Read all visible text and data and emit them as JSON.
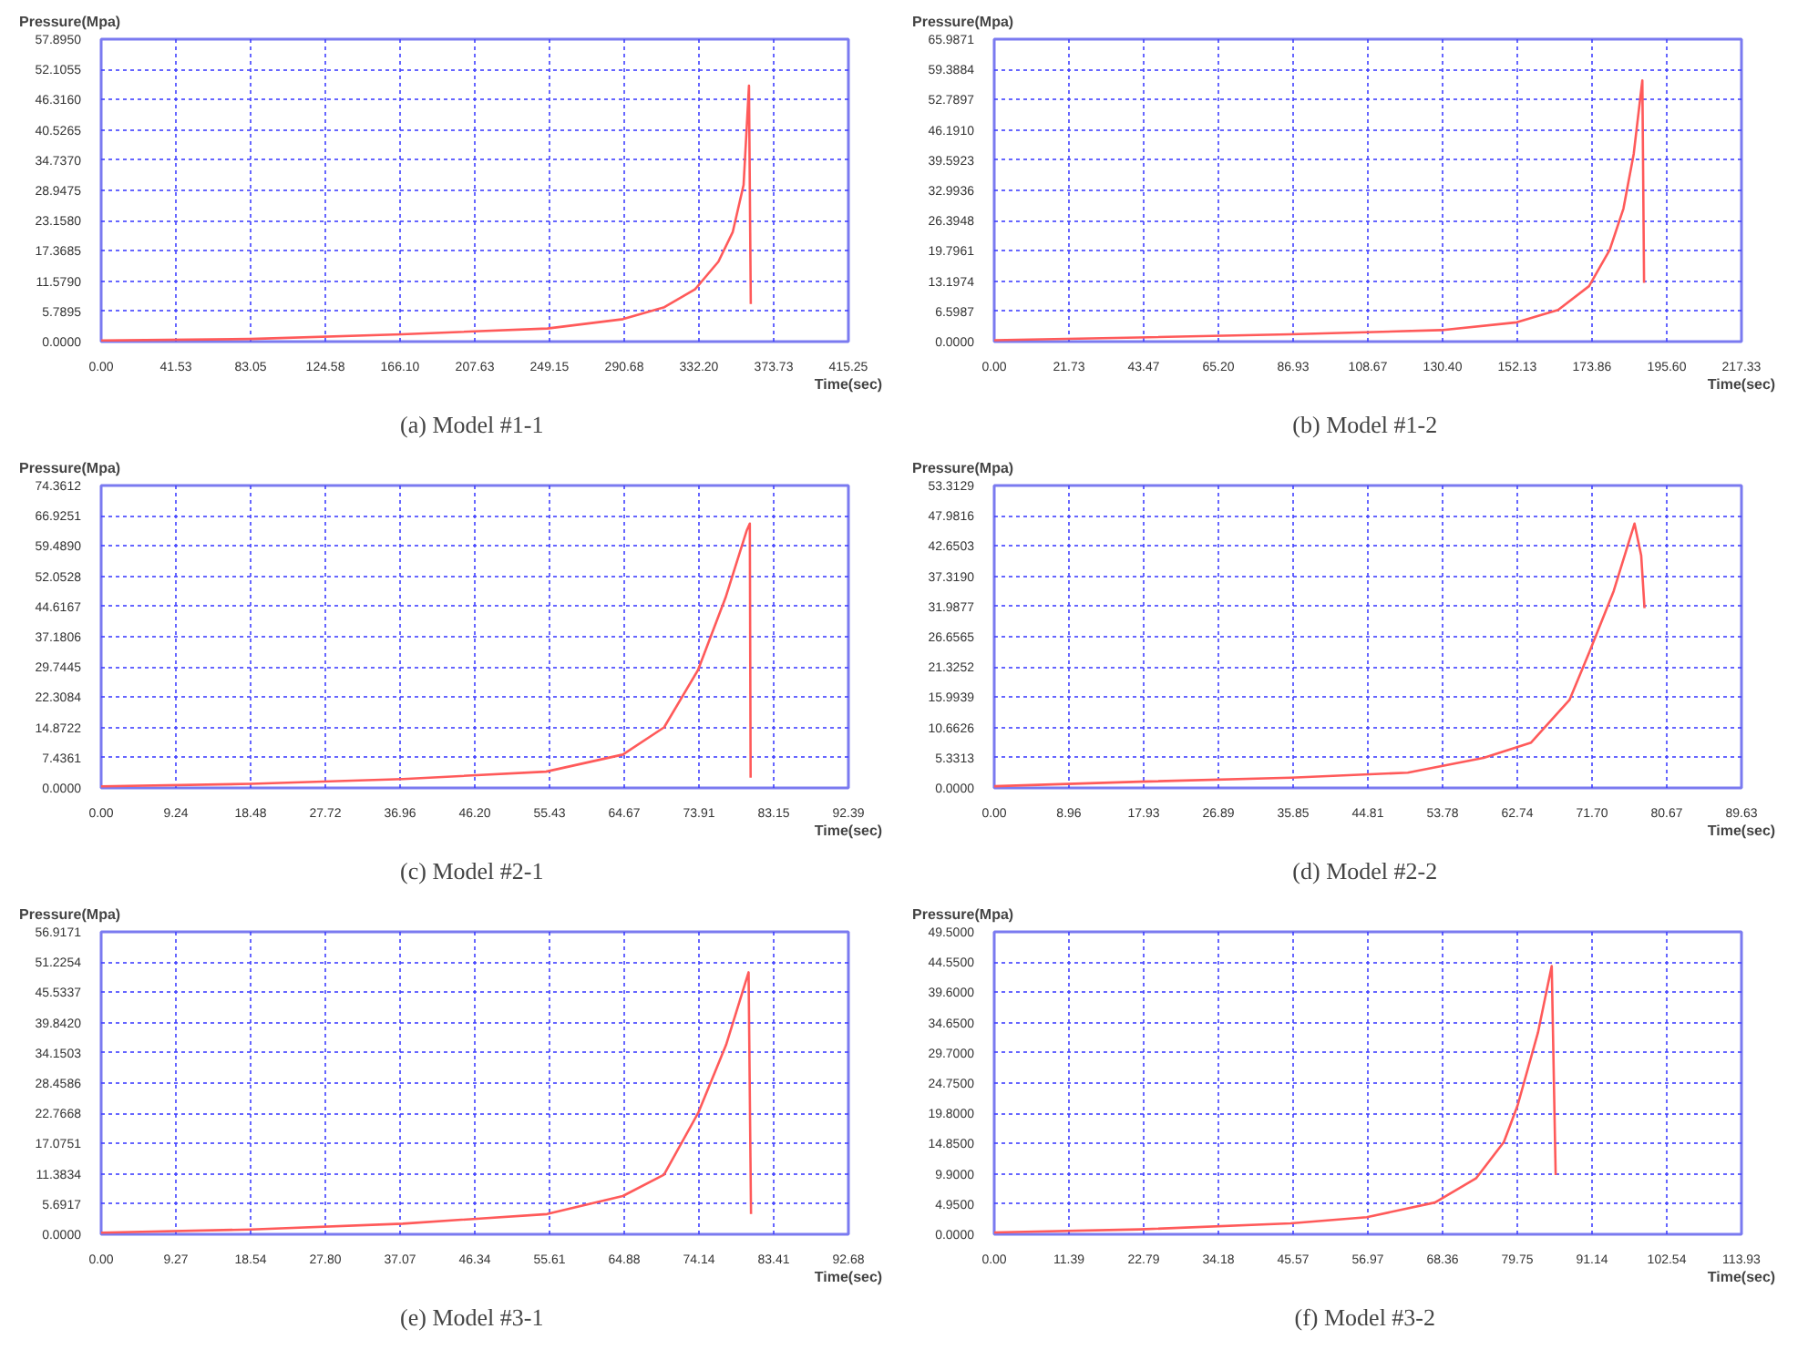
{
  "chart_data": [
    {
      "type": "line",
      "title": "(a)  Model #1-1",
      "xlabel": "Time(sec)",
      "ylabel": "Pressure(Mpa)",
      "grid": true,
      "line_style": "solid",
      "xlim": [
        0,
        415.25
      ],
      "ylim": [
        0,
        57.895
      ],
      "xticks": [
        {
          "value": 0,
          "label": "0.00"
        },
        {
          "value": 41.53,
          "label": "41.53"
        },
        {
          "value": 83.05,
          "label": "83.05"
        },
        {
          "value": 124.58,
          "label": "124.58"
        },
        {
          "value": 166.1,
          "label": "166.10"
        },
        {
          "value": 207.63,
          "label": "207.63"
        },
        {
          "value": 249.15,
          "label": "249.15"
        },
        {
          "value": 290.68,
          "label": "290.68"
        },
        {
          "value": 332.2,
          "label": "332.20"
        },
        {
          "value": 373.73,
          "label": "373.73"
        },
        {
          "value": 415.25,
          "label": "415.25"
        }
      ],
      "yticks": [
        {
          "value": 0,
          "label": "0.0000"
        },
        {
          "value": 5.7895,
          "label": "5.7895"
        },
        {
          "value": 11.579,
          "label": "11.5790"
        },
        {
          "value": 17.3685,
          "label": "17.3685"
        },
        {
          "value": 23.158,
          "label": "23.1580"
        },
        {
          "value": 28.9475,
          "label": "28.9475"
        },
        {
          "value": 34.737,
          "label": "34.7370"
        },
        {
          "value": 40.5265,
          "label": "40.5265"
        },
        {
          "value": 46.316,
          "label": "46.3160"
        },
        {
          "value": 52.1055,
          "label": "52.1055"
        },
        {
          "value": 57.895,
          "label": "57.8950"
        }
      ],
      "series": [
        {
          "color": "#ff5a5a",
          "x": [
            0,
            83,
            167,
            248,
            290,
            313,
            330,
            343,
            351,
            357,
            360,
            361
          ],
          "values": [
            0.2,
            0.5,
            1.4,
            2.5,
            4.3,
            6.6,
            10,
            15.3,
            21,
            30,
            49,
            7.2
          ]
        }
      ]
    },
    {
      "type": "line",
      "title": "(b)  Model #1-2",
      "xlabel": "Time(sec)",
      "ylabel": "Pressure(Mpa)",
      "grid": true,
      "line_style": "solid",
      "xlim": [
        0,
        217.33
      ],
      "ylim": [
        0,
        65.9871
      ],
      "xticks": [
        {
          "value": 0,
          "label": "0.00"
        },
        {
          "value": 21.73,
          "label": "21.73"
        },
        {
          "value": 43.47,
          "label": "43.47"
        },
        {
          "value": 65.2,
          "label": "65.20"
        },
        {
          "value": 86.93,
          "label": "86.93"
        },
        {
          "value": 108.67,
          "label": "108.67"
        },
        {
          "value": 130.4,
          "label": "130.40"
        },
        {
          "value": 152.13,
          "label": "152.13"
        },
        {
          "value": 173.86,
          "label": "173.86"
        },
        {
          "value": 195.6,
          "label": "195.60"
        },
        {
          "value": 217.33,
          "label": "217.33"
        }
      ],
      "yticks": [
        {
          "value": 0,
          "label": "0.0000"
        },
        {
          "value": 6.5987,
          "label": "6.5987"
        },
        {
          "value": 13.1974,
          "label": "13.1974"
        },
        {
          "value": 19.7961,
          "label": "19.7961"
        },
        {
          "value": 26.3948,
          "label": "26.3948"
        },
        {
          "value": 32.9936,
          "label": "32.9936"
        },
        {
          "value": 39.5923,
          "label": "39.5923"
        },
        {
          "value": 46.191,
          "label": "46.1910"
        },
        {
          "value": 52.7897,
          "label": "52.7897"
        },
        {
          "value": 59.3884,
          "label": "59.3884"
        },
        {
          "value": 65.9871,
          "label": "65.9871"
        }
      ],
      "series": [
        {
          "color": "#ff5a5a",
          "x": [
            0,
            42,
            86,
            130,
            152,
            164,
            173,
            179,
            183,
            186,
            188.5,
            189
          ],
          "values": [
            0.3,
            0.9,
            1.6,
            2.5,
            4.2,
            6.9,
            12.1,
            20,
            29,
            41,
            57,
            12.8
          ]
        }
      ]
    },
    {
      "type": "line",
      "title": "(c)  Model #2-1",
      "xlabel": "Time(sec)",
      "ylabel": "Pressure(Mpa)",
      "grid": true,
      "line_style": "solid",
      "xlim": [
        0,
        92.39
      ],
      "ylim": [
        0,
        74.3612
      ],
      "xticks": [
        {
          "value": 0,
          "label": "0.00"
        },
        {
          "value": 9.24,
          "label": "9.24"
        },
        {
          "value": 18.48,
          "label": "18.48"
        },
        {
          "value": 27.72,
          "label": "27.72"
        },
        {
          "value": 36.96,
          "label": "36.96"
        },
        {
          "value": 46.2,
          "label": "46.20"
        },
        {
          "value": 55.43,
          "label": "55.43"
        },
        {
          "value": 64.67,
          "label": "64.67"
        },
        {
          "value": 73.91,
          "label": "73.91"
        },
        {
          "value": 83.15,
          "label": "83.15"
        },
        {
          "value": 92.39,
          "label": "92.39"
        }
      ],
      "yticks": [
        {
          "value": 0,
          "label": "0.0000"
        },
        {
          "value": 7.4361,
          "label": "7.4361"
        },
        {
          "value": 14.8722,
          "label": "14.8722"
        },
        {
          "value": 22.3084,
          "label": "22.3084"
        },
        {
          "value": 29.7445,
          "label": "29.7445"
        },
        {
          "value": 37.1806,
          "label": "37.1806"
        },
        {
          "value": 44.6167,
          "label": "44.6167"
        },
        {
          "value": 52.0528,
          "label": "52.0528"
        },
        {
          "value": 59.489,
          "label": "59.4890"
        },
        {
          "value": 66.9251,
          "label": "66.9251"
        },
        {
          "value": 74.3612,
          "label": "74.3612"
        }
      ],
      "series": [
        {
          "color": "#ff5a5a",
          "x": [
            0,
            18.5,
            37.3,
            55,
            64.5,
            69.6,
            73.8,
            77.2,
            79.8,
            80.2,
            80.3
          ],
          "values": [
            0.4,
            1,
            2.2,
            4,
            8.2,
            14.9,
            29,
            46.8,
            63.2,
            65,
            2.5
          ]
        }
      ]
    },
    {
      "type": "line",
      "title": "(d)  Model #2-2",
      "xlabel": "Time(sec)",
      "ylabel": "Pressure(Mpa)",
      "grid": true,
      "line_style": "solid",
      "xlim": [
        0,
        89.63
      ],
      "ylim": [
        0,
        53.3129
      ],
      "xticks": [
        {
          "value": 0,
          "label": "0.00"
        },
        {
          "value": 8.96,
          "label": "8.96"
        },
        {
          "value": 17.93,
          "label": "17.93"
        },
        {
          "value": 26.89,
          "label": "26.89"
        },
        {
          "value": 35.85,
          "label": "35.85"
        },
        {
          "value": 44.81,
          "label": "44.81"
        },
        {
          "value": 53.78,
          "label": "53.78"
        },
        {
          "value": 62.74,
          "label": "62.74"
        },
        {
          "value": 71.7,
          "label": "71.70"
        },
        {
          "value": 80.67,
          "label": "80.67"
        },
        {
          "value": 89.63,
          "label": "89.63"
        }
      ],
      "yticks": [
        {
          "value": 0,
          "label": "0.0000"
        },
        {
          "value": 5.3313,
          "label": "5.3313"
        },
        {
          "value": 10.6626,
          "label": "10.6626"
        },
        {
          "value": 15.9939,
          "label": "15.9939"
        },
        {
          "value": 21.3252,
          "label": "21.3252"
        },
        {
          "value": 26.6565,
          "label": "26.6565"
        },
        {
          "value": 31.9877,
          "label": "31.9877"
        },
        {
          "value": 37.319,
          "label": "37.3190"
        },
        {
          "value": 42.6503,
          "label": "42.6503"
        },
        {
          "value": 47.9816,
          "label": "47.9816"
        },
        {
          "value": 53.3129,
          "label": "53.3129"
        }
      ],
      "series": [
        {
          "color": "#ff5a5a",
          "x": [
            0,
            17.5,
            35.6,
            49.6,
            58.7,
            64.4,
            69,
            71.4,
            74.3,
            76.8,
            77.6,
            78
          ],
          "values": [
            0.3,
            1.1,
            1.8,
            2.7,
            5.3,
            8,
            15.5,
            24,
            34.7,
            46.6,
            41,
            31.7
          ]
        }
      ]
    },
    {
      "type": "line",
      "title": "(e)  Model #3-1",
      "xlabel": "Time(sec)",
      "ylabel": "Pressure(Mpa)",
      "grid": true,
      "line_style": "solid",
      "xlim": [
        0,
        92.68
      ],
      "ylim": [
        0,
        56.9171
      ],
      "xticks": [
        {
          "value": 0,
          "label": "0.00"
        },
        {
          "value": 9.27,
          "label": "9.27"
        },
        {
          "value": 18.54,
          "label": "18.54"
        },
        {
          "value": 27.8,
          "label": "27.80"
        },
        {
          "value": 37.07,
          "label": "37.07"
        },
        {
          "value": 46.34,
          "label": "46.34"
        },
        {
          "value": 55.61,
          "label": "55.61"
        },
        {
          "value": 64.88,
          "label": "64.88"
        },
        {
          "value": 74.14,
          "label": "74.14"
        },
        {
          "value": 83.41,
          "label": "83.41"
        },
        {
          "value": 92.68,
          "label": "92.68"
        }
      ],
      "yticks": [
        {
          "value": 0,
          "label": "0.0000"
        },
        {
          "value": 5.6917,
          "label": "5.6917"
        },
        {
          "value": 11.3834,
          "label": "11.3834"
        },
        {
          "value": 17.0751,
          "label": "17.0751"
        },
        {
          "value": 22.7668,
          "label": "22.7668"
        },
        {
          "value": 28.4586,
          "label": "28.4586"
        },
        {
          "value": 34.1503,
          "label": "34.1503"
        },
        {
          "value": 39.842,
          "label": "39.8420"
        },
        {
          "value": 45.5337,
          "label": "45.5337"
        },
        {
          "value": 51.2254,
          "label": "51.2254"
        },
        {
          "value": 56.9171,
          "label": "56.9171"
        }
      ],
      "series": [
        {
          "color": "#ff5a5a",
          "x": [
            0,
            18.6,
            37.4,
            55.3,
            64.7,
            69.8,
            74.1,
            77.5,
            80.3,
            80.6
          ],
          "values": [
            0.3,
            0.9,
            2,
            3.8,
            7.2,
            11.2,
            23,
            35.6,
            49.3,
            3.8
          ]
        }
      ]
    },
    {
      "type": "line",
      "title": "(f)  Model #3-2",
      "xlabel": "Time(sec)",
      "ylabel": "Pressure(Mpa)",
      "grid": true,
      "line_style": "solid",
      "xlim": [
        0,
        113.93
      ],
      "ylim": [
        0,
        49.5
      ],
      "xticks": [
        {
          "value": 0,
          "label": "0.00"
        },
        {
          "value": 11.39,
          "label": "11.39"
        },
        {
          "value": 22.79,
          "label": "22.79"
        },
        {
          "value": 34.18,
          "label": "34.18"
        },
        {
          "value": 45.57,
          "label": "45.57"
        },
        {
          "value": 56.97,
          "label": "56.97"
        },
        {
          "value": 68.36,
          "label": "68.36"
        },
        {
          "value": 79.75,
          "label": "79.75"
        },
        {
          "value": 91.14,
          "label": "91.14"
        },
        {
          "value": 102.54,
          "label": "102.54"
        },
        {
          "value": 113.93,
          "label": "113.93"
        }
      ],
      "yticks": [
        {
          "value": 0,
          "label": "0.0000"
        },
        {
          "value": 4.95,
          "label": "4.9500"
        },
        {
          "value": 9.9,
          "label": "9.9000"
        },
        {
          "value": 14.85,
          "label": "14.8500"
        },
        {
          "value": 19.8,
          "label": "19.8000"
        },
        {
          "value": 24.75,
          "label": "24.7500"
        },
        {
          "value": 29.7,
          "label": "29.7000"
        },
        {
          "value": 34.65,
          "label": "34.6500"
        },
        {
          "value": 39.6,
          "label": "39.6000"
        },
        {
          "value": 44.55,
          "label": "44.5500"
        },
        {
          "value": 49.5,
          "label": "49.5000"
        }
      ],
      "series": [
        {
          "color": "#ff5a5a",
          "x": [
            0,
            22.2,
            45.2,
            56.8,
            67.2,
            73.5,
            77.7,
            79.8,
            82.9,
            85,
            85.6
          ],
          "values": [
            0.3,
            0.8,
            1.8,
            2.8,
            5.2,
            9.2,
            15.1,
            21.1,
            33,
            43.9,
            9.7
          ]
        }
      ]
    }
  ]
}
